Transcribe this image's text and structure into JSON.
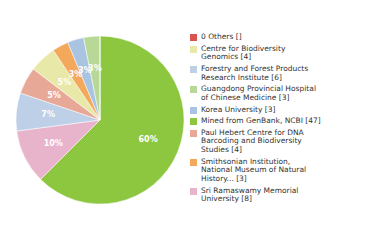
{
  "chart_data": {
    "type": "pie",
    "categories": [
      "Mined from GenBank, NCBI [47]",
      "Sri Ramaswamy Memorial\nUniversity [8]",
      "Forestry and Forest Products\nResearch Institute [6]",
      "Paul Hebert Centre for DNA\nBarcoding and Biodiversity\nStudies [4]",
      "Centre for Biodiversity\nGenomics [4]",
      "Smithsonian Institution,\nNational Museum of Natural\nHistory... [3]",
      "Korea University [3]",
      "Guangdong Provincial Hospital\nof Chinese Medicine [3]",
      "0 Others []"
    ],
    "values": [
      60,
      10,
      7,
      5,
      5,
      3,
      3,
      3,
      0.01
    ],
    "value_labels": [
      "60%",
      "10%",
      "7%",
      "5%",
      "5%",
      "3%",
      "3%",
      "3%",
      null
    ],
    "colors": [
      "#8dc63f",
      "#e8b4cc",
      "#bdd0e8",
      "#e8a898",
      "#e8e8a8",
      "#f4a85c",
      "#a8c4e0",
      "#b8d898",
      "#d9534f"
    ],
    "data_labels": true,
    "legend": "right"
  }
}
